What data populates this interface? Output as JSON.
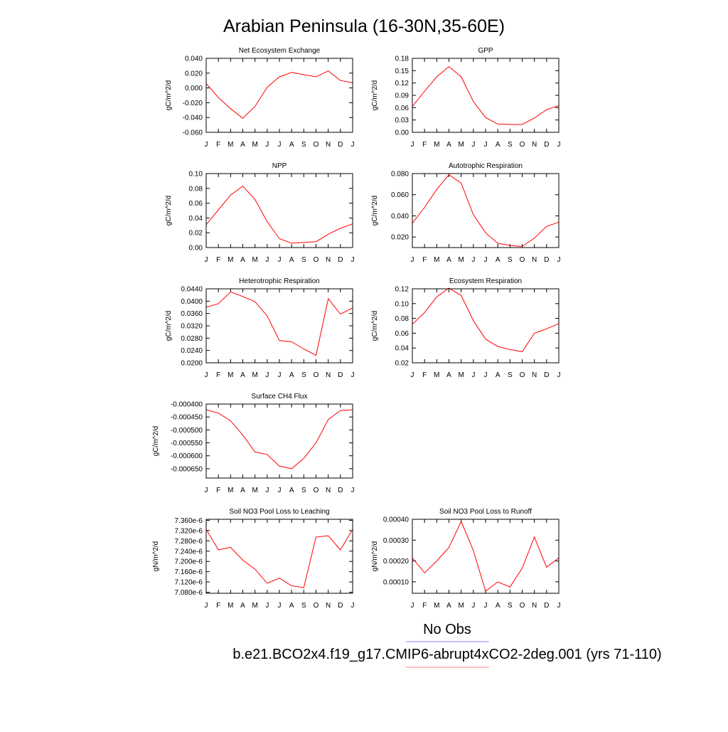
{
  "title": "Arabian Peninsula (16-30N,35-60E)",
  "legend": [
    {
      "name": "No Obs",
      "color": "#8080ff"
    },
    {
      "name": "b.e21.BCO2x4.f19_g17.CMIP6-abrupt4xCO2-2deg.001 (yrs 71-110)",
      "color": "#ff8080"
    }
  ],
  "chart_data": [
    {
      "type": "line",
      "title": "Net Ecosystem Exchange",
      "ylabel": "gC/m^2/d",
      "categories": [
        "J",
        "F",
        "M",
        "A",
        "M",
        "J",
        "J",
        "A",
        "S",
        "O",
        "N",
        "D",
        "J"
      ],
      "color": "#ff0000",
      "values": [
        0.006,
        -0.013,
        -0.028,
        -0.041,
        -0.025,
        0.001,
        0.015,
        0.021,
        0.018,
        0.015,
        0.023,
        0.01,
        0.007
      ],
      "ylim": [
        -0.06,
        0.04
      ],
      "yticks": [
        {
          "value": -0.06,
          "label": "-0.060"
        },
        {
          "value": -0.04,
          "label": "-0.040"
        },
        {
          "value": -0.02,
          "label": "-0.020"
        },
        {
          "value": 0,
          "label": "0.000"
        },
        {
          "value": 0.02,
          "label": "0.020"
        },
        {
          "value": 0.04,
          "label": "0.040"
        }
      ]
    },
    {
      "type": "line",
      "title": "GPP",
      "ylabel": "gC/m^2/d",
      "categories": [
        "J",
        "F",
        "M",
        "A",
        "M",
        "J",
        "J",
        "A",
        "S",
        "O",
        "N",
        "D",
        "J"
      ],
      "color": "#ff0000",
      "values": [
        0.063,
        0.1,
        0.135,
        0.16,
        0.135,
        0.075,
        0.036,
        0.02,
        0.019,
        0.019,
        0.035,
        0.055,
        0.065
      ],
      "ylim": [
        0,
        0.18
      ],
      "yticks": [
        {
          "value": 0,
          "label": "0.00"
        },
        0.03,
        0.06,
        0.09,
        0.12,
        0.15,
        0.18
      ]
    },
    {
      "type": "line",
      "title": "NPP",
      "ylabel": "gC/m^2/d",
      "categories": [
        "J",
        "F",
        "M",
        "A",
        "M",
        "J",
        "J",
        "A",
        "S",
        "O",
        "N",
        "D",
        "J"
      ],
      "color": "#ff0000",
      "values": [
        0.031,
        0.051,
        0.071,
        0.083,
        0.065,
        0.035,
        0.012,
        0.006,
        0.007,
        0.008,
        0.018,
        0.026,
        0.032
      ],
      "ylim": [
        0,
        0.1
      ],
      "yticks": [
        {
          "value": 0,
          "label": "0.00"
        },
        0.02,
        0.04,
        0.06,
        0.08,
        {
          "value": 0.1,
          "label": "0.10"
        }
      ]
    },
    {
      "type": "line",
      "title": "Autotrophic Respiration",
      "ylabel": "gC/m^2/d",
      "categories": [
        "J",
        "F",
        "M",
        "A",
        "M",
        "J",
        "J",
        "A",
        "S",
        "O",
        "N",
        "D",
        "J"
      ],
      "color": "#ff0000",
      "values": [
        0.033,
        0.048,
        0.065,
        0.079,
        0.071,
        0.041,
        0.024,
        0.014,
        0.012,
        0.011,
        0.019,
        0.03,
        0.034
      ],
      "ylim": [
        0.01,
        0.08
      ],
      "yticks": [
        {
          "value": 0.02,
          "label": "0.020"
        },
        {
          "value": 0.04,
          "label": "0.040"
        },
        {
          "value": 0.06,
          "label": "0.060"
        },
        {
          "value": 0.08,
          "label": "0.080"
        }
      ]
    },
    {
      "type": "line",
      "title": "Heterotrophic Respiration",
      "ylabel": "gC/m^2/d",
      "categories": [
        "J",
        "F",
        "M",
        "A",
        "M",
        "J",
        "J",
        "A",
        "S",
        "O",
        "N",
        "D",
        "J"
      ],
      "color": "#ff0000",
      "values": [
        0.038,
        0.0392,
        0.043,
        0.0415,
        0.0398,
        0.0352,
        0.0272,
        0.0268,
        0.0245,
        0.0224,
        0.0408,
        0.0358,
        0.0378
      ],
      "ylim": [
        0.02,
        0.044
      ],
      "yticks": [
        {
          "value": 0.02,
          "label": "0.0200"
        },
        {
          "value": 0.024,
          "label": "0.0240"
        },
        {
          "value": 0.028,
          "label": "0.0280"
        },
        {
          "value": 0.032,
          "label": "0.0320"
        },
        {
          "value": 0.036,
          "label": "0.0360"
        },
        {
          "value": 0.04,
          "label": "0.0400"
        },
        {
          "value": 0.044,
          "label": "0.0440"
        }
      ]
    },
    {
      "type": "line",
      "title": "Ecosystem Respiration",
      "ylabel": "gC/m^2/d",
      "categories": [
        "J",
        "F",
        "M",
        "A",
        "M",
        "J",
        "J",
        "A",
        "S",
        "O",
        "N",
        "D",
        "J"
      ],
      "color": "#ff0000",
      "values": [
        0.072,
        0.088,
        0.109,
        0.121,
        0.111,
        0.077,
        0.052,
        0.042,
        0.038,
        0.035,
        0.06,
        0.066,
        0.073
      ],
      "ylim": [
        0.02,
        0.12
      ],
      "yticks": [
        0.02,
        0.04,
        0.06,
        0.08,
        {
          "value": 0.1,
          "label": "0.10"
        },
        0.12
      ]
    },
    {
      "type": "line",
      "title": "Surface CH4 Flux",
      "ylabel": "gC/m^2/d",
      "categories": [
        "J",
        "F",
        "M",
        "A",
        "M",
        "J",
        "J",
        "A",
        "S",
        "O",
        "N",
        "D",
        "J"
      ],
      "color": "#ff0000",
      "values": [
        -0.000422,
        -0.000435,
        -0.000465,
        -0.00052,
        -0.000585,
        -0.000595,
        -0.00064,
        -0.00065,
        -0.00061,
        -0.00055,
        -0.00046,
        -0.000425,
        -0.000422
      ],
      "ylim": [
        -0.000686,
        -0.0004
      ],
      "yticks": [
        {
          "value": -0.00065,
          "label": "-0.000650"
        },
        {
          "value": -0.0006,
          "label": "-0.000600"
        },
        {
          "value": -0.00055,
          "label": "-0.000550"
        },
        {
          "value": -0.0005,
          "label": "-0.000500"
        },
        {
          "value": -0.00045,
          "label": "-0.000450"
        },
        {
          "value": -0.0004,
          "label": "-0.000400"
        }
      ]
    },
    {
      "type": "line",
      "title": "Soil NO3 Pool Loss to Leaching",
      "ylabel": "gN/m^2/d",
      "categories": [
        "J",
        "F",
        "M",
        "A",
        "M",
        "J",
        "J",
        "A",
        "S",
        "O",
        "N",
        "D",
        "J"
      ],
      "color": "#ff0000",
      "values": [
        7.325e-06,
        7.245e-06,
        7.255e-06,
        7.205e-06,
        7.17e-06,
        7.115e-06,
        7.135e-06,
        7.105e-06,
        7.098e-06,
        7.295e-06,
        7.3e-06,
        7.245e-06,
        7.325e-06
      ],
      "ylim": [
        7.076e-06,
        7.364e-06
      ],
      "yticks": [
        {
          "value": 7.08e-06,
          "label": "7.080e-6"
        },
        {
          "value": 7.12e-06,
          "label": "7.120e-6"
        },
        {
          "value": 7.16e-06,
          "label": "7.160e-6"
        },
        {
          "value": 7.2e-06,
          "label": "7.200e-6"
        },
        {
          "value": 7.24e-06,
          "label": "7.240e-6"
        },
        {
          "value": 7.28e-06,
          "label": "7.280e-6"
        },
        {
          "value": 7.32e-06,
          "label": "7.320e-6"
        },
        {
          "value": 7.36e-06,
          "label": "7.360e-6"
        }
      ]
    },
    {
      "type": "line",
      "title": "Soil NO3 Pool Loss to Runoff",
      "ylabel": "gN/m^2/d",
      "categories": [
        "J",
        "F",
        "M",
        "A",
        "M",
        "J",
        "J",
        "A",
        "S",
        "O",
        "N",
        "D",
        "J"
      ],
      "color": "#ff0000",
      "values": [
        0.000215,
        0.000143,
        0.0002,
        0.000265,
        0.00039,
        0.00025,
        5.5e-05,
        0.0001,
        7.5e-05,
        0.000165,
        0.000315,
        0.00017,
        0.000215
      ],
      "ylim": [
        4.5e-05,
        0.0004
      ],
      "yticks": [
        {
          "value": 0.0001,
          "label": "0.00010"
        },
        {
          "value": 0.0002,
          "label": "0.00020"
        },
        {
          "value": 0.0003,
          "label": "0.00030"
        },
        {
          "value": 0.0004,
          "label": "0.00040"
        }
      ]
    }
  ]
}
